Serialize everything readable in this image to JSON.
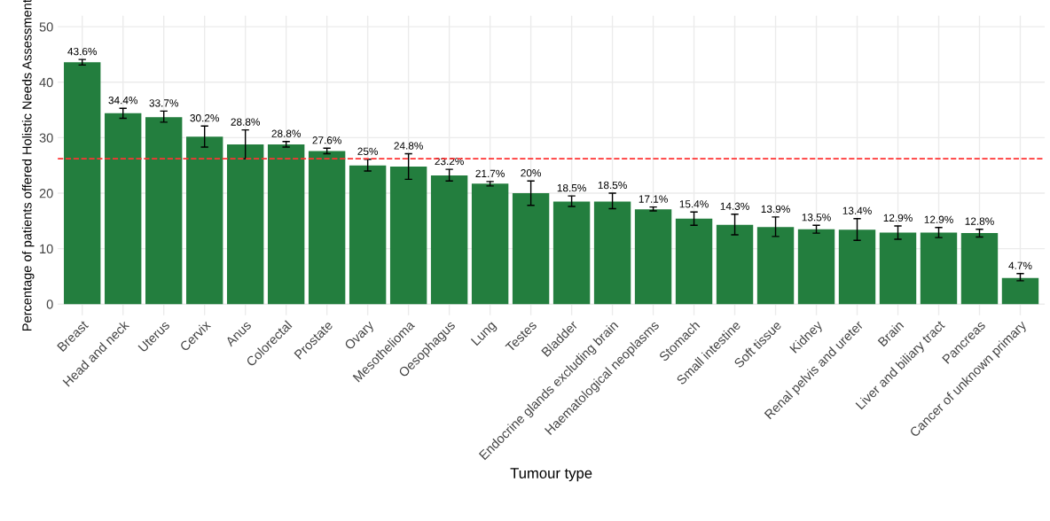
{
  "chart_data": {
    "type": "bar",
    "xlabel": "Tumour type",
    "ylabel": "Percentage of patients offered Holistic Needs Assessment",
    "categories": [
      "Breast",
      "Head and neck",
      "Uterus",
      "Cervix",
      "Anus",
      "Colorectal",
      "Prostate",
      "Ovary",
      "Mesothelioma",
      "Oesophagus",
      "Lung",
      "Testes",
      "Bladder",
      "Endocrine glands excluding brain",
      "Haematological neoplasms",
      "Stomach",
      "Small intestine",
      "Soft tissue",
      "Kidney",
      "Renal pelvis and ureter",
      "Brain",
      "Liver and biliary tract",
      "Pancreas",
      "Cancer of unknown primary"
    ],
    "values": [
      43.6,
      34.4,
      33.7,
      30.2,
      28.8,
      28.8,
      27.6,
      25,
      24.8,
      23.2,
      21.7,
      20,
      18.5,
      18.5,
      17.1,
      15.4,
      14.3,
      13.9,
      13.5,
      13.4,
      12.9,
      12.9,
      12.8,
      4.7
    ],
    "value_labels": [
      "43.6%",
      "34.4%",
      "33.7%",
      "30.2%",
      "28.8%",
      "28.8%",
      "27.6%",
      "25%",
      "24.8%",
      "23.2%",
      "21.7%",
      "20%",
      "18.5%",
      "18.5%",
      "17.1%",
      "15.4%",
      "14.3%",
      "13.9%",
      "13.5%",
      "13.4%",
      "12.9%",
      "12.9%",
      "12.8%",
      "4.7%"
    ],
    "errors": [
      [
        43.1,
        44.1
      ],
      [
        33.5,
        35.3
      ],
      [
        32.8,
        34.8
      ],
      [
        28.3,
        32.1
      ],
      [
        26.2,
        31.4
      ],
      [
        28.3,
        29.3
      ],
      [
        27.1,
        28.1
      ],
      [
        24,
        26.1
      ],
      [
        22.5,
        27.1
      ],
      [
        22.2,
        24.3
      ],
      [
        21.3,
        22.1
      ],
      [
        17.8,
        22.2
      ],
      [
        17.6,
        19.5
      ],
      [
        17.2,
        20
      ],
      [
        16.8,
        17.5
      ],
      [
        14.2,
        16.6
      ],
      [
        12.5,
        16.2
      ],
      [
        12.2,
        15.7
      ],
      [
        12.8,
        14.2
      ],
      [
        11.5,
        15.4
      ],
      [
        11.7,
        14.1
      ],
      [
        12,
        13.8
      ],
      [
        12.1,
        13.5
      ],
      [
        4.2,
        5.5
      ]
    ],
    "color": "#237e3e",
    "ylim": [
      -2,
      52
    ],
    "yticks": [
      0,
      10,
      20,
      30,
      40,
      50
    ],
    "grid": true,
    "ref_lines": [
      {
        "axis": "y",
        "value": 26.2,
        "color": "#ff3333",
        "line_style": "dashed"
      }
    ]
  }
}
